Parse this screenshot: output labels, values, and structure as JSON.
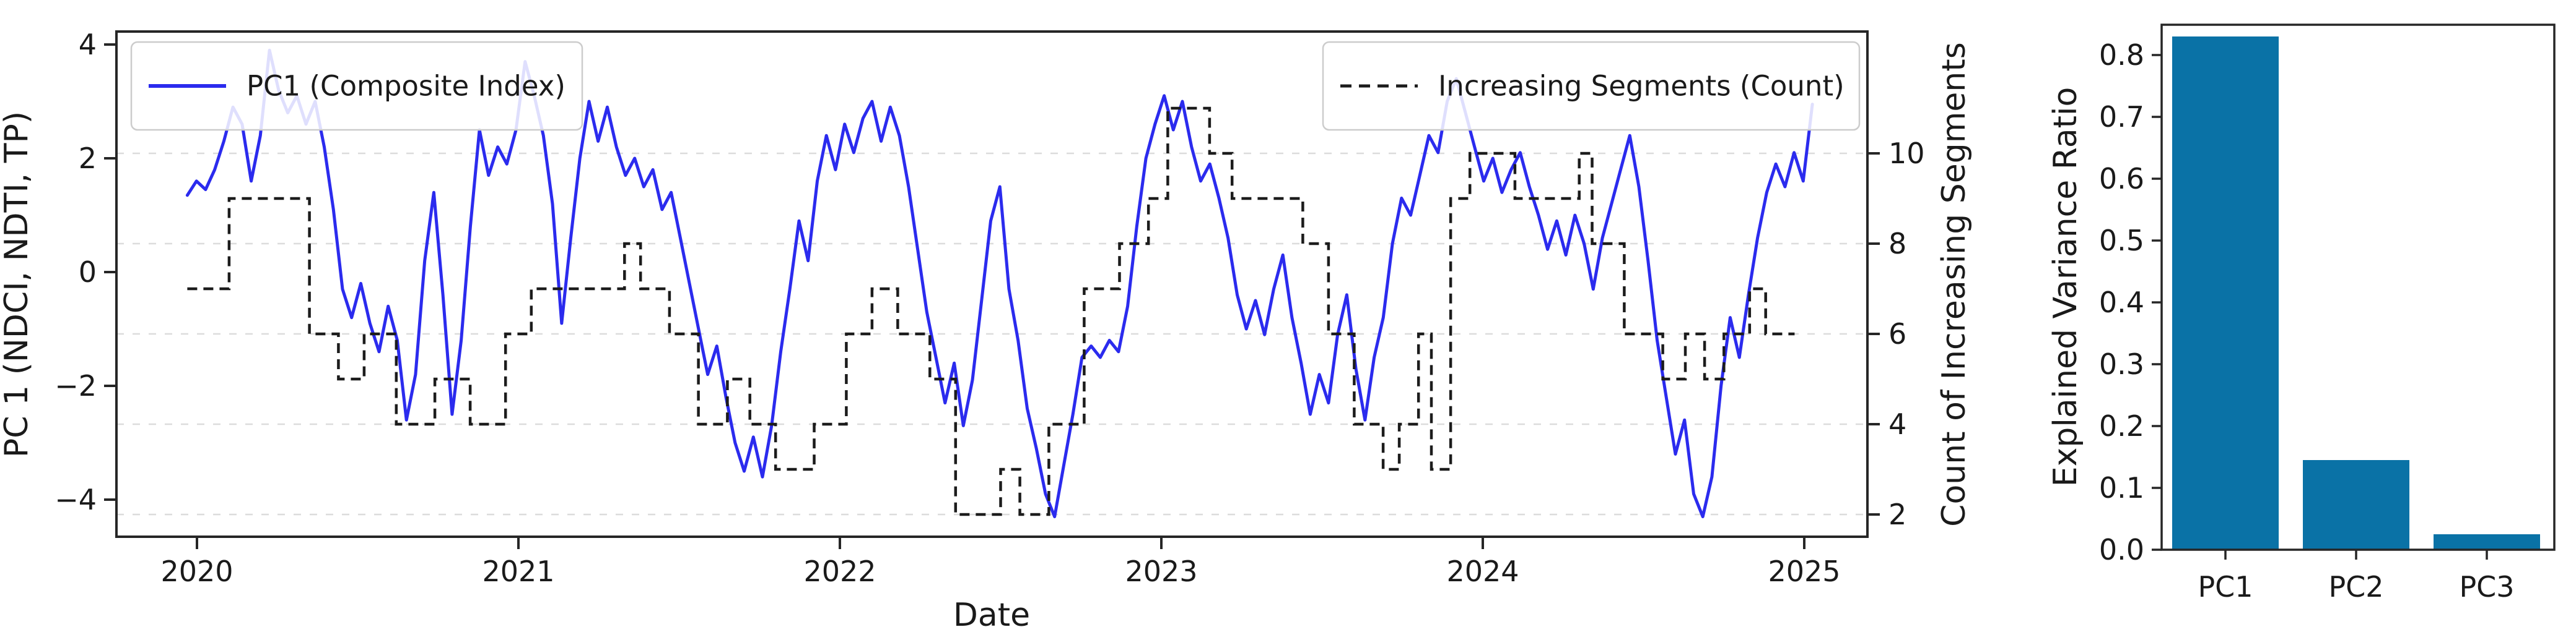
{
  "figure": {
    "background": "#ffffff"
  },
  "colors": {
    "pc1_line": "#2b2bee",
    "count_line": "#1c1c1c",
    "bar_fill": "#0a72a6",
    "grid": "#dcdcdc",
    "spine": "#262626",
    "text": "#1a1a1a",
    "legend_border": "#cccccc"
  },
  "chart_data": [
    {
      "type": "line",
      "title": "",
      "xlabel": "Date",
      "ylabel_left": "PC 1 (NDCI, NDTI, TP)",
      "ylabel_right": "Count of Increasing Segments",
      "x_tick_labels": [
        "2020",
        "2021",
        "2022",
        "2023",
        "2024",
        "2025"
      ],
      "x_ticks": [
        2020,
        2021,
        2022,
        2023,
        2024,
        2025
      ],
      "left_yticks": [
        -4,
        -2,
        0,
        2,
        4
      ],
      "left_ylim": [
        -4.65,
        4.25
      ],
      "right_yticks": [
        2,
        4,
        6,
        8,
        10
      ],
      "right_ylim": [
        1.5,
        11.3
      ],
      "grid": "horizontal-dashed",
      "legend_position": [
        "upper left",
        "upper right"
      ],
      "series": [
        {
          "name": "PC1 (Composite Index)",
          "style": "solid",
          "axis": "left",
          "t0": 2019.97,
          "dt": 0.0284,
          "values": [
            1.35,
            1.6,
            1.45,
            1.8,
            2.3,
            2.9,
            2.6,
            1.6,
            2.4,
            3.9,
            3.2,
            2.8,
            3.1,
            2.6,
            3.0,
            2.2,
            1.1,
            -0.3,
            -0.8,
            -0.2,
            -0.9,
            -1.4,
            -0.6,
            -1.2,
            -2.6,
            -1.8,
            0.2,
            1.4,
            -0.4,
            -2.5,
            -1.2,
            0.8,
            2.5,
            1.7,
            2.2,
            1.9,
            2.5,
            3.7,
            3.1,
            2.4,
            1.2,
            -0.9,
            0.6,
            2.0,
            3.0,
            2.3,
            2.9,
            2.2,
            1.7,
            2.0,
            1.5,
            1.8,
            1.1,
            1.4,
            0.6,
            -0.2,
            -1.0,
            -1.8,
            -1.3,
            -2.2,
            -3.0,
            -3.5,
            -2.9,
            -3.6,
            -2.7,
            -1.4,
            -0.3,
            0.9,
            0.2,
            1.6,
            2.4,
            1.8,
            2.6,
            2.1,
            2.7,
            3.0,
            2.3,
            2.9,
            2.4,
            1.5,
            0.4,
            -0.7,
            -1.5,
            -2.3,
            -1.6,
            -2.7,
            -1.9,
            -0.5,
            0.9,
            1.5,
            -0.3,
            -1.2,
            -2.4,
            -3.1,
            -3.9,
            -4.3,
            -3.4,
            -2.5,
            -1.5,
            -1.3,
            -1.5,
            -1.2,
            -1.4,
            -0.6,
            0.8,
            2.0,
            2.6,
            3.1,
            2.5,
            3.0,
            2.2,
            1.6,
            1.9,
            1.3,
            0.6,
            -0.4,
            -1.0,
            -0.5,
            -1.1,
            -0.3,
            0.3,
            -0.8,
            -1.6,
            -2.5,
            -1.8,
            -2.3,
            -1.1,
            -0.4,
            -1.7,
            -2.6,
            -1.5,
            -0.8,
            0.5,
            1.3,
            1.0,
            1.7,
            2.4,
            2.1,
            3.0,
            3.4,
            2.8,
            2.2,
            1.6,
            2.0,
            1.4,
            1.8,
            2.1,
            1.5,
            1.0,
            0.4,
            0.9,
            0.3,
            1.0,
            0.5,
            -0.3,
            0.6,
            1.2,
            1.8,
            2.4,
            1.5,
            0.2,
            -1.2,
            -2.2,
            -3.2,
            -2.6,
            -3.9,
            -4.3,
            -3.6,
            -2.0,
            -0.8,
            -1.5,
            -0.4,
            0.6,
            1.4,
            1.9,
            1.5,
            2.1,
            1.6,
            2.95
          ]
        },
        {
          "name": "Increasing Segments (Count)",
          "style": "dashed",
          "axis": "right",
          "step": true,
          "t_end": 2024.97,
          "segments": [
            [
              2019.97,
              7
            ],
            [
              2020.1,
              9
            ],
            [
              2020.35,
              6
            ],
            [
              2020.44,
              5
            ],
            [
              2020.52,
              6
            ],
            [
              2020.62,
              4
            ],
            [
              2020.74,
              5
            ],
            [
              2020.85,
              4
            ],
            [
              2020.96,
              6
            ],
            [
              2021.04,
              7
            ],
            [
              2021.33,
              8
            ],
            [
              2021.38,
              7
            ],
            [
              2021.47,
              6
            ],
            [
              2021.56,
              4
            ],
            [
              2021.65,
              5
            ],
            [
              2021.72,
              4
            ],
            [
              2021.8,
              3
            ],
            [
              2021.92,
              4
            ],
            [
              2022.02,
              6
            ],
            [
              2022.1,
              7
            ],
            [
              2022.18,
              6
            ],
            [
              2022.28,
              5
            ],
            [
              2022.36,
              2
            ],
            [
              2022.5,
              3
            ],
            [
              2022.56,
              2
            ],
            [
              2022.65,
              4
            ],
            [
              2022.76,
              7
            ],
            [
              2022.87,
              8
            ],
            [
              2022.96,
              9
            ],
            [
              2023.02,
              11
            ],
            [
              2023.15,
              10
            ],
            [
              2023.22,
              9
            ],
            [
              2023.44,
              8
            ],
            [
              2023.52,
              6
            ],
            [
              2023.6,
              4
            ],
            [
              2023.69,
              3
            ],
            [
              2023.74,
              4
            ],
            [
              2023.8,
              6
            ],
            [
              2023.84,
              3
            ],
            [
              2023.9,
              9
            ],
            [
              2023.96,
              10
            ],
            [
              2024.1,
              9
            ],
            [
              2024.3,
              10
            ],
            [
              2024.34,
              8
            ],
            [
              2024.44,
              6
            ],
            [
              2024.56,
              5
            ],
            [
              2024.63,
              6
            ],
            [
              2024.69,
              5
            ],
            [
              2024.75,
              6
            ],
            [
              2024.83,
              7
            ],
            [
              2024.88,
              6
            ]
          ]
        }
      ]
    },
    {
      "type": "bar",
      "title": "",
      "xlabel": "",
      "ylabel": "Explained Variance Ratio",
      "categories": [
        "PC1",
        "PC2",
        "PC3"
      ],
      "values": [
        0.83,
        0.145,
        0.025
      ],
      "ytick_labels": [
        "0.0",
        "0.1",
        "0.2",
        "0.3",
        "0.4",
        "0.5",
        "0.6",
        "0.7",
        "0.8"
      ],
      "yticks": [
        0.0,
        0.1,
        0.2,
        0.3,
        0.4,
        0.5,
        0.6,
        0.7,
        0.8
      ],
      "ylim": [
        0.0,
        0.85
      ],
      "grid": "off"
    }
  ],
  "timeseries": {
    "xlabel": "Date",
    "ylabel_left": "PC 1 (NDCI, NDTI, TP)",
    "ylabel_right": "Count of Increasing Segments",
    "legend1_label": "PC1 (Composite Index)",
    "legend2_label": "Increasing Segments (Count)"
  },
  "barchart": {
    "ylabel": "Explained Variance Ratio"
  }
}
